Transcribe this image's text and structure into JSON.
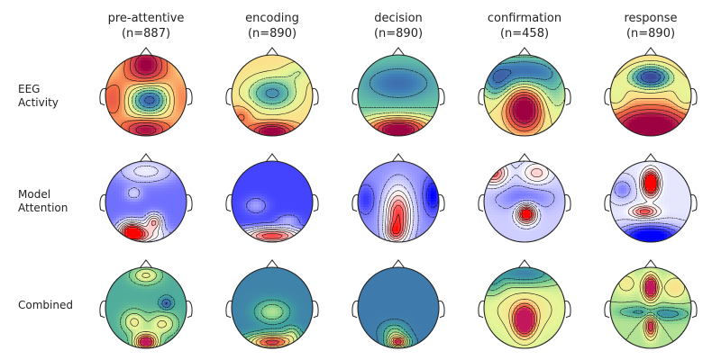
{
  "columns": [
    {
      "name": "pre-attentive",
      "count": "(n=887)"
    },
    {
      "name": "encoding",
      "count": "(n=890)"
    },
    {
      "name": "decision",
      "count": "(n=890)"
    },
    {
      "name": "confirmation",
      "count": "(n=458)"
    },
    {
      "name": "response",
      "count": "(n=890)"
    }
  ],
  "rows": [
    {
      "line1": "EEG",
      "line2": "Activity",
      "colormap": "rdylbu-spectral"
    },
    {
      "line1": "Model",
      "line2": "Attention",
      "colormap": "bwr"
    },
    {
      "line1": "Combined",
      "line2": "",
      "colormap": "spectral-viridis"
    }
  ],
  "colormaps": {
    "rdylbu-spectral": [
      "#3b4a9a",
      "#3f7fb8",
      "#66c2a5",
      "#e6f598",
      "#fee08b",
      "#f46d43",
      "#d53e4f",
      "#9e0142"
    ],
    "bwr": [
      "#0000ff",
      "#5a5aff",
      "#c8c8ff",
      "#ffffff",
      "#ffc8c8",
      "#ff5a5a",
      "#ff0000"
    ],
    "spectral-viridis": [
      "#4a3f8a",
      "#3f6fb0",
      "#3fa0a0",
      "#7fcf8f",
      "#e6f598",
      "#fee08b",
      "#f46d43",
      "#c2185b"
    ]
  }
}
